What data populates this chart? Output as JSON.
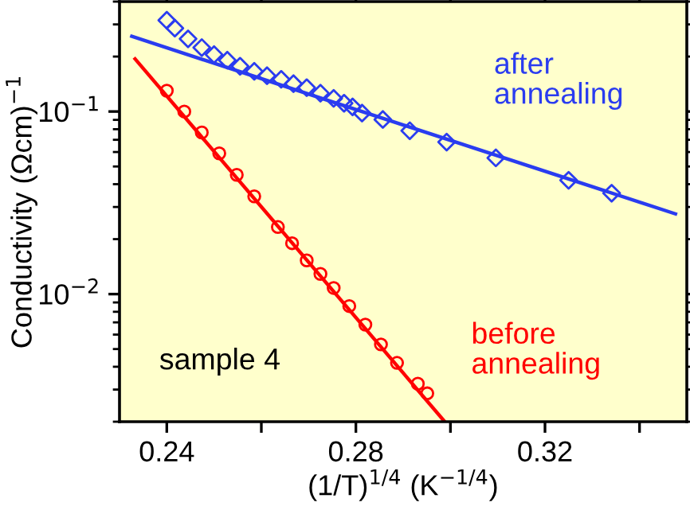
{
  "chart_data": {
    "type": "scatter",
    "xlabel": "(1/T)$^{1/4}$ (K$^{−1/4}$)",
    "ylabel": "Conductivity (Ωcm)$^{−1}$",
    "log": "y",
    "xlim": [
      0.23,
      0.35
    ],
    "ylim": [
      0.002,
      0.4
    ],
    "xticks": [
      0.24,
      {
        "value": 0.26,
        "label": null
      },
      0.28,
      {
        "value": 0.3,
        "label": null
      },
      0.32,
      {
        "value": 0.34,
        "label": null
      }
    ],
    "yticks": [
      {
        "value": 0.01,
        "label": "10$^{−2}$"
      },
      {
        "value": 0.1,
        "label": "10$^{−1}$"
      }
    ],
    "grid": false,
    "legend": false,
    "series": [
      {
        "marker": "diamond",
        "color": "#2a3cf0",
        "x": [
          0.24,
          0.2417,
          0.2445,
          0.2474,
          0.25,
          0.2528,
          0.2555,
          0.2585,
          0.2612,
          0.2642,
          0.2668,
          0.2696,
          0.2725,
          0.2753,
          0.2775,
          0.2793,
          0.2813,
          0.2857,
          0.2914,
          0.2992,
          0.3096,
          0.325,
          0.3341
        ],
        "values": [
          0.316,
          0.286,
          0.25,
          0.224,
          0.205,
          0.191,
          0.177,
          0.166,
          0.157,
          0.15,
          0.142,
          0.135,
          0.126,
          0.118,
          0.111,
          0.106,
          0.098,
          0.0904,
          0.0785,
          0.068,
          0.0557,
          0.042,
          0.0357
        ]
      },
      {
        "type": "line",
        "color": "#2a3cf0",
        "x": [
          0.2326,
          0.3476
        ],
        "values": [
          0.258,
          0.0275
        ]
      },
      {
        "marker": "circle",
        "color": "#ff0000",
        "x": [
          0.24,
          0.2437,
          0.2474,
          0.2511,
          0.2548,
          0.2585,
          0.2635,
          0.2665,
          0.2696,
          0.2725,
          0.2753,
          0.2786,
          0.282,
          0.2853,
          0.2887,
          0.2931,
          0.2951
        ],
        "values": [
          0.13,
          0.1,
          0.0768,
          0.059,
          0.045,
          0.0343,
          0.0233,
          0.019,
          0.0153,
          0.0129,
          0.0108,
          0.0086,
          0.0068,
          0.0053,
          0.0042,
          0.00323,
          0.00286
        ]
      },
      {
        "type": "line",
        "color": "#ff0000",
        "x": [
          0.2333,
          0.2988
        ],
        "values": [
          0.194,
          0.002
        ]
      }
    ],
    "annotations": [
      "after\nannealing",
      "before\nannealing",
      "sample 4"
    ]
  }
}
